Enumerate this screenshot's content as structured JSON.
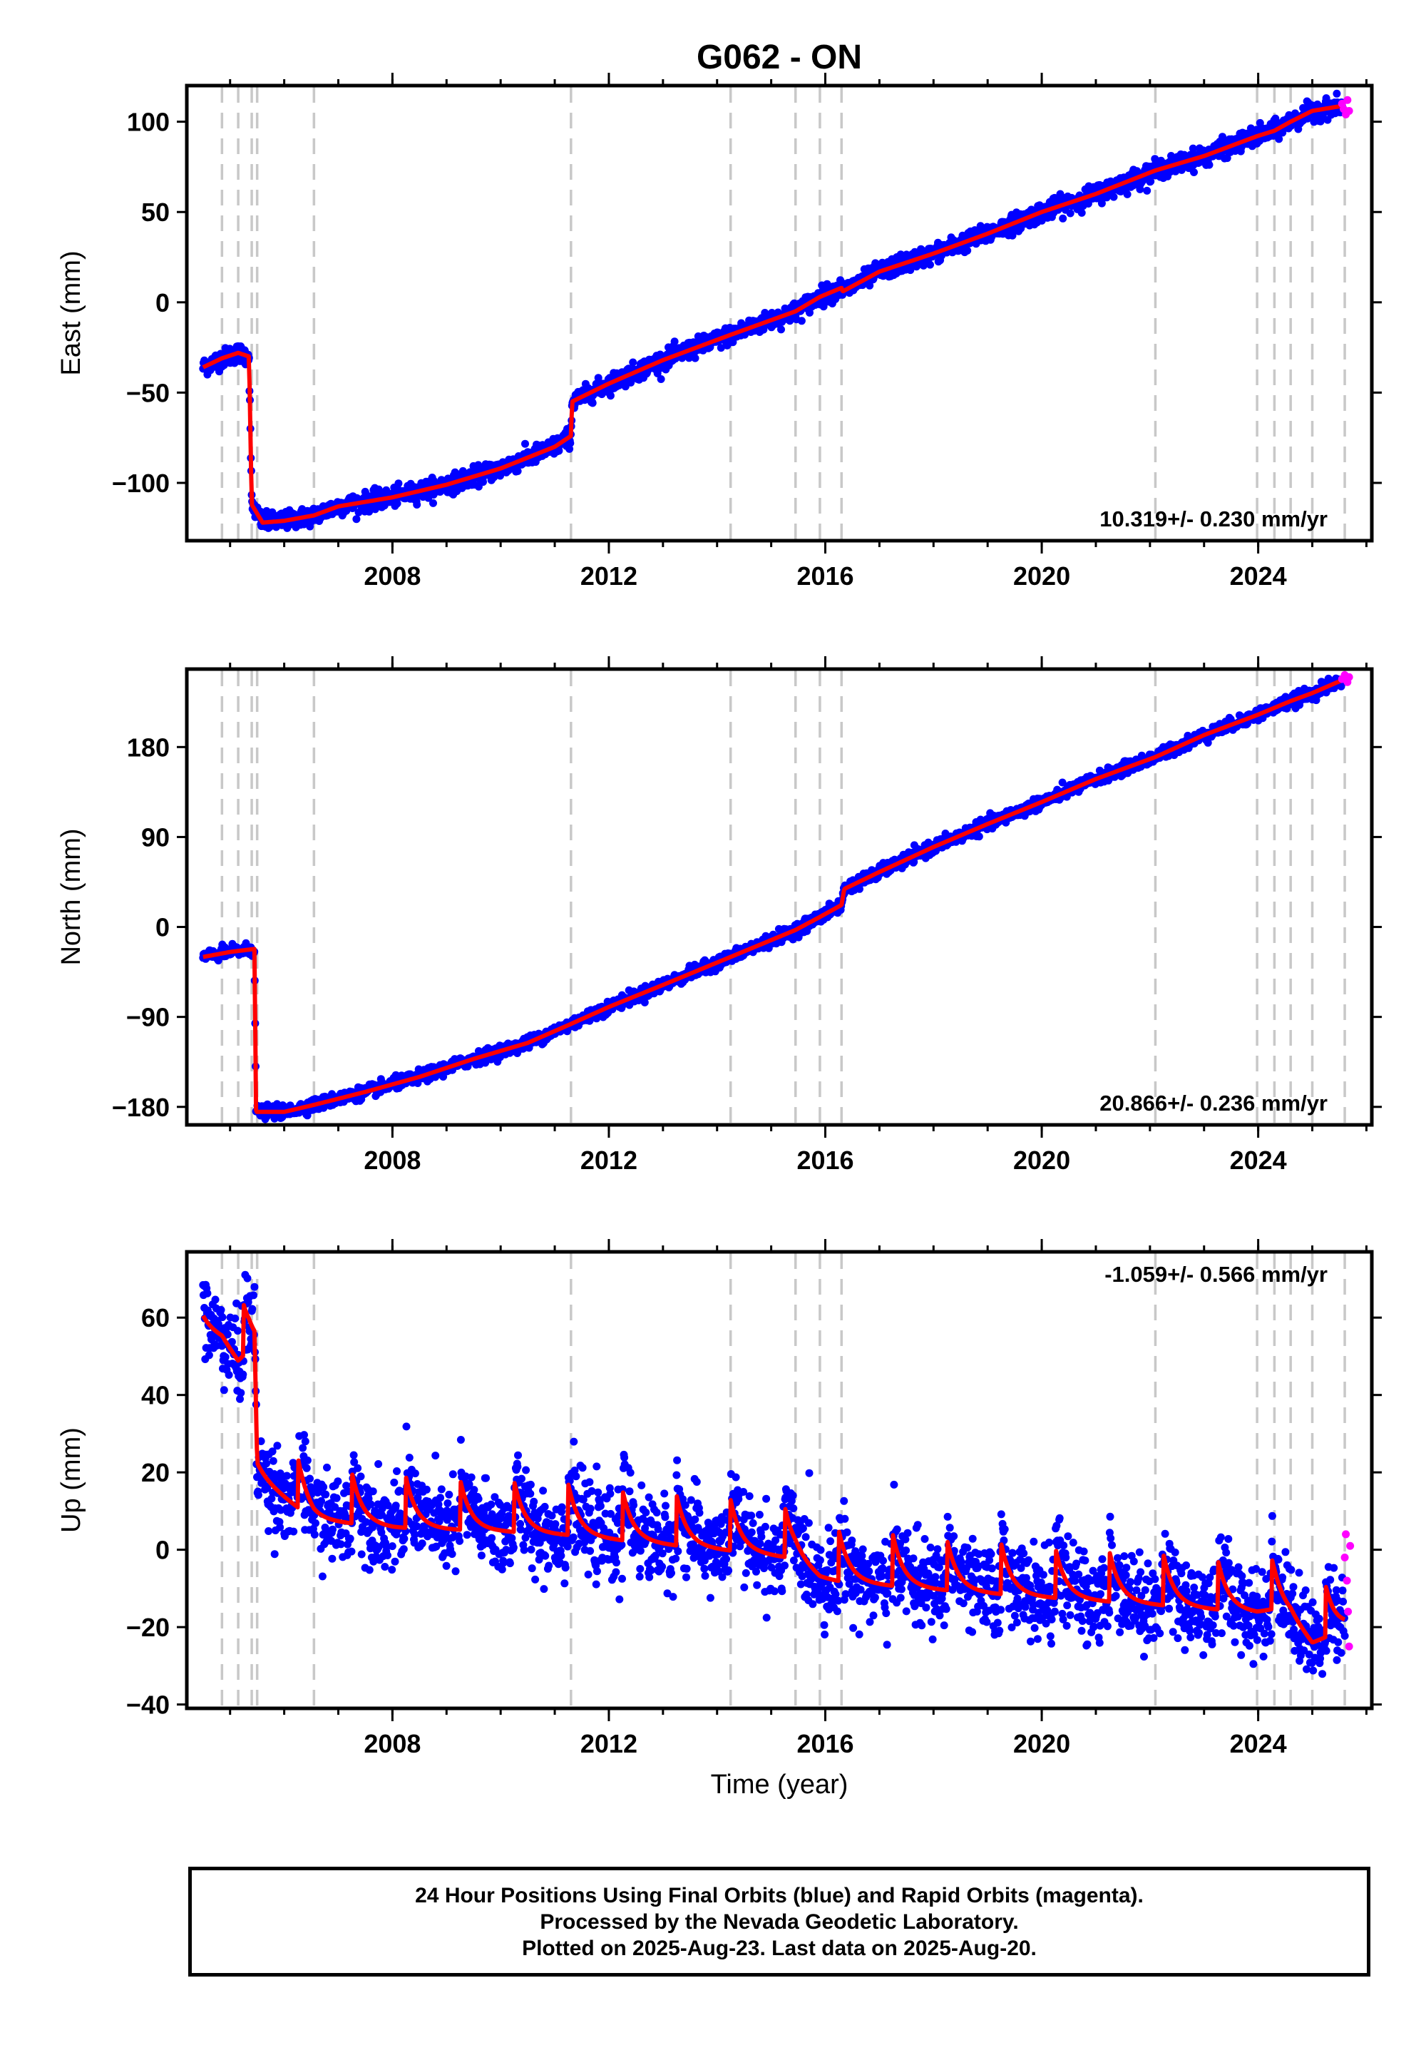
{
  "figure": {
    "title": "G062 - ON",
    "xlabel": "Time (year)",
    "caption": [
      "24 Hour Positions Using Final Orbits (blue) and Rapid Orbits (magenta).",
      "Processed by the Nevada Geodetic Laboratory.",
      "Plotted on 2025-Aug-23. Last data on 2025-Aug-20."
    ],
    "colors": {
      "final": "#0000ff",
      "rapid": "#ff00ff",
      "model": "#ff0000",
      "event_lines": "#c8c8c8"
    }
  },
  "chart_data": [
    {
      "type": "scatter",
      "panel": "east",
      "ylabel": "East (mm)",
      "rate_label": "10.319+/- 0.230 mm/yr",
      "rate_position": "bottom-right",
      "xlim": [
        2004.2,
        2026.1
      ],
      "ylim": [
        -132,
        120
      ],
      "yticks": [
        -100,
        -50,
        0,
        50,
        100
      ],
      "xticks": [
        2008,
        2012,
        2016,
        2020,
        2024
      ],
      "grid": false,
      "event_lines": [
        2004.85,
        2005.15,
        2005.4,
        2005.5,
        2006.55,
        2011.3,
        2014.25,
        2015.45,
        2015.9,
        2016.3,
        2022.1,
        2023.98,
        2024.3,
        2024.6,
        2025.0,
        2025.6
      ],
      "model_points": [
        [
          2004.5,
          -36
        ],
        [
          2004.85,
          -31
        ],
        [
          2005.15,
          -28
        ],
        [
          2005.35,
          -30
        ],
        [
          2005.4,
          -112
        ],
        [
          2005.6,
          -122
        ],
        [
          2006.0,
          -121
        ],
        [
          2006.55,
          -118
        ],
        [
          2007.0,
          -113
        ],
        [
          2008.0,
          -108
        ],
        [
          2009.0,
          -101
        ],
        [
          2010.0,
          -92
        ],
        [
          2011.0,
          -80
        ],
        [
          2011.3,
          -74
        ],
        [
          2011.32,
          -55
        ],
        [
          2012.0,
          -45
        ],
        [
          2013.0,
          -32
        ],
        [
          2014.25,
          -18
        ],
        [
          2015.45,
          -5
        ],
        [
          2015.9,
          3
        ],
        [
          2016.3,
          8
        ],
        [
          2016.32,
          6
        ],
        [
          2017.0,
          17
        ],
        [
          2018.0,
          27
        ],
        [
          2019.0,
          38
        ],
        [
          2020.0,
          50
        ],
        [
          2021.0,
          60
        ],
        [
          2022.1,
          73
        ],
        [
          2023.0,
          81
        ],
        [
          2023.98,
          92
        ],
        [
          2024.3,
          95
        ],
        [
          2024.6,
          100
        ],
        [
          2025.0,
          106
        ],
        [
          2025.6,
          109
        ]
      ],
      "rapid_points": [
        [
          2025.55,
          110
        ],
        [
          2025.58,
          107
        ],
        [
          2025.62,
          104
        ],
        [
          2025.65,
          112
        ],
        [
          2025.68,
          106
        ]
      ],
      "noise": 2.5,
      "seasonal": 0
    },
    {
      "type": "scatter",
      "panel": "north",
      "ylabel": "North (mm)",
      "rate_label": "20.866+/- 0.236 mm/yr",
      "rate_position": "bottom-right",
      "xlim": [
        2004.2,
        2026.1
      ],
      "ylim": [
        -198,
        258
      ],
      "yticks": [
        -180,
        -90,
        0,
        90,
        180
      ],
      "xticks": [
        2008,
        2012,
        2016,
        2020,
        2024
      ],
      "grid": false,
      "event_lines": [
        2004.85,
        2005.15,
        2005.4,
        2005.5,
        2006.55,
        2011.3,
        2014.25,
        2015.45,
        2015.9,
        2016.3,
        2022.1,
        2023.98,
        2024.3,
        2024.6,
        2025.0,
        2025.6
      ],
      "model_points": [
        [
          2004.5,
          -30
        ],
        [
          2005.0,
          -25
        ],
        [
          2005.45,
          -22
        ],
        [
          2005.48,
          -185
        ],
        [
          2006.0,
          -185
        ],
        [
          2006.55,
          -178
        ],
        [
          2007.5,
          -165
        ],
        [
          2008.5,
          -150
        ],
        [
          2009.5,
          -132
        ],
        [
          2010.5,
          -116
        ],
        [
          2011.3,
          -97
        ],
        [
          2012.0,
          -80
        ],
        [
          2013.0,
          -58
        ],
        [
          2014.25,
          -30
        ],
        [
          2015.45,
          -3
        ],
        [
          2015.9,
          10
        ],
        [
          2016.3,
          22
        ],
        [
          2016.35,
          38
        ],
        [
          2017.0,
          55
        ],
        [
          2018.0,
          80
        ],
        [
          2019.0,
          103
        ],
        [
          2020.0,
          125
        ],
        [
          2021.0,
          148
        ],
        [
          2022.1,
          170
        ],
        [
          2023.0,
          192
        ],
        [
          2023.98,
          212
        ],
        [
          2024.6,
          226
        ],
        [
          2025.0,
          234
        ],
        [
          2025.6,
          248
        ]
      ],
      "rapid_points": [
        [
          2025.55,
          248
        ],
        [
          2025.6,
          252
        ],
        [
          2025.65,
          245
        ],
        [
          2025.68,
          250
        ]
      ],
      "noise": 3,
      "seasonal": 0
    },
    {
      "type": "scatter",
      "panel": "up",
      "ylabel": "Up (mm)",
      "rate_label": "-1.059+/- 0.566 mm/yr",
      "rate_position": "top-right",
      "xlim": [
        2004.2,
        2026.1
      ],
      "ylim": [
        -41,
        77
      ],
      "yticks": [
        -40,
        -20,
        0,
        20,
        40,
        60
      ],
      "xticks": [
        2008,
        2012,
        2016,
        2020,
        2024
      ],
      "grid": false,
      "event_lines": [
        2004.85,
        2005.15,
        2005.4,
        2005.5,
        2006.55,
        2011.3,
        2014.25,
        2015.45,
        2015.9,
        2016.3,
        2022.1,
        2023.98,
        2024.3,
        2024.6,
        2025.0,
        2025.6
      ],
      "model_points": [
        [
          2004.5,
          60
        ],
        [
          2004.85,
          58
        ],
        [
          2005.15,
          52
        ],
        [
          2005.35,
          55
        ],
        [
          2005.45,
          55
        ],
        [
          2005.5,
          22
        ],
        [
          2006.55,
          11
        ],
        [
          2008.0,
          9
        ],
        [
          2010.0,
          8
        ],
        [
          2011.3,
          7
        ],
        [
          2012.0,
          6
        ],
        [
          2014.25,
          3
        ],
        [
          2015.45,
          1
        ],
        [
          2015.9,
          -4
        ],
        [
          2016.3,
          -5
        ],
        [
          2018.0,
          -7
        ],
        [
          2020.0,
          -9
        ],
        [
          2022.1,
          -11
        ],
        [
          2023.98,
          -13
        ],
        [
          2024.3,
          -12
        ],
        [
          2024.6,
          -14
        ],
        [
          2025.0,
          -21
        ],
        [
          2025.6,
          -17
        ]
      ],
      "rapid_points": [
        [
          2025.6,
          -2
        ],
        [
          2025.62,
          4
        ],
        [
          2025.64,
          -8
        ],
        [
          2025.66,
          -16
        ],
        [
          2025.68,
          -25
        ],
        [
          2025.7,
          1
        ]
      ],
      "noise": 5.5,
      "seasonal": 6
    }
  ]
}
